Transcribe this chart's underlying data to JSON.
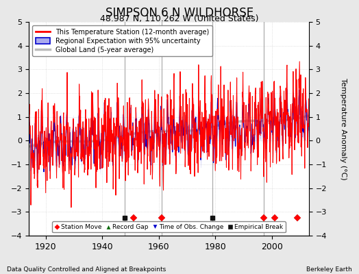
{
  "title": "SIMPSON 6 N WILDHORSE",
  "subtitle": "48.987 N, 110.262 W (United States)",
  "ylabel": "Temperature Anomaly (°C)",
  "xlabel_left": "Data Quality Controlled and Aligned at Breakpoints",
  "xlabel_right": "Berkeley Earth",
  "year_start": 1914,
  "year_end": 2013,
  "ylim": [
    -4,
    5
  ],
  "yticks": [
    -4,
    -3,
    -2,
    -1,
    0,
    1,
    2,
    3,
    4,
    5
  ],
  "xticks": [
    1920,
    1940,
    1960,
    1980,
    2000
  ],
  "bg_color": "#e8e8e8",
  "plot_bg_color": "#ffffff",
  "grid_color": "#cccccc",
  "station_line_color": "#ff0000",
  "regional_line_color": "#0000cc",
  "regional_fill_color": "#aaaaee",
  "global_land_color": "#bbbbbb",
  "marker_y": -3.25,
  "station_move_years": [
    1951,
    1961,
    1997,
    2001,
    2009
  ],
  "empirical_break_years": [
    1948,
    1979
  ],
  "time_obs_years": [],
  "record_gap_years": [],
  "vertical_lines": [
    1948,
    1961,
    1979,
    1997
  ],
  "vertical_line_color": "#999999",
  "legend_labels": [
    "This Temperature Station (12-month average)",
    "Regional Expectation with 95% uncertainty",
    "Global Land (5-year average)"
  ],
  "bottom_legend_labels": [
    "Station Move",
    "Record Gap",
    "Time of Obs. Change",
    "Empirical Break"
  ]
}
